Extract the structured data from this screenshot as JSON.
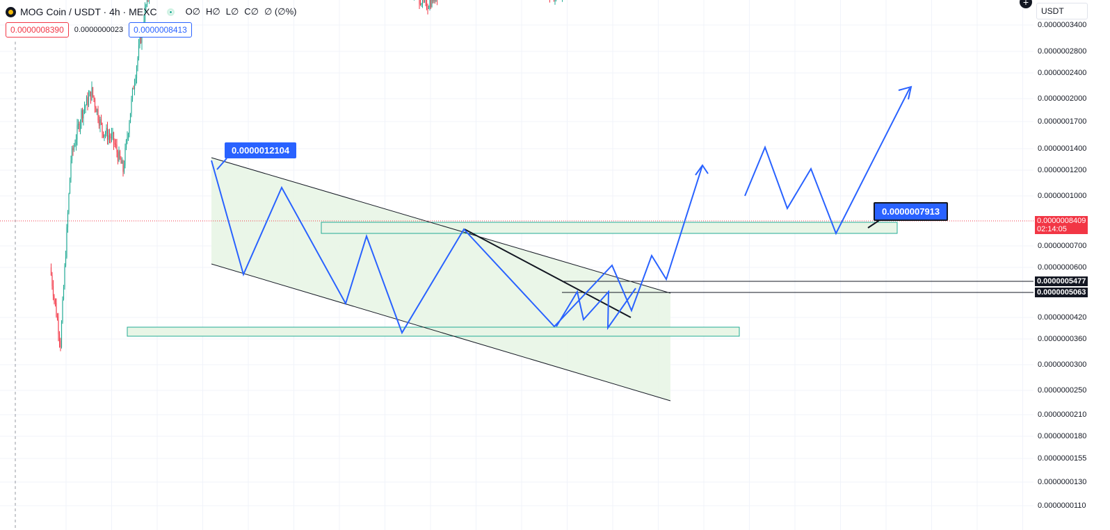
{
  "header": {
    "symbol": "MOG Coin / USDT · 4h · MEXC",
    "ohlc": [
      "O∅",
      "H∅",
      "L∅",
      "C∅",
      "∅ (∅%)"
    ],
    "sell_price": "0.0000008390",
    "spread": "0.0000000023",
    "buy_price": "0.0000008413",
    "currency": "USDT",
    "plus_icon": "+"
  },
  "colors": {
    "accent": "#2962ff",
    "up": "#22ab94",
    "down": "#f23645",
    "zone_fill": "#e8f5e6",
    "zone_border": "#22ab94",
    "black": "#131722"
  },
  "chart_data": {
    "type": "candlestick",
    "title": "MOG Coin / USDT · 4h · MEXC",
    "yscale": "log",
    "ylabel": "USDT",
    "y_ticks": [
      "0.0000003400",
      "0.0000002800",
      "0.0000002400",
      "0.0000002000",
      "0.0000001700",
      "0.0000001400",
      "0.0000001200",
      "0.0000001000",
      "0.0000000700",
      "0.0000000600",
      "0.0000000420",
      "0.0000000360",
      "0.0000000300",
      "0.0000000250",
      "0.0000000210",
      "0.0000000180",
      "0.0000000155",
      "0.0000000130",
      "0.0000000110"
    ],
    "current_price": "0.0000008409",
    "countdown": "02:14:05",
    "level_labels": [
      "0.0000005477",
      "0.0000005063"
    ],
    "annotations": [
      "0.0000012104",
      "0.0000007913"
    ],
    "price_path": [
      [
        0,
        0.6
      ],
      [
        10,
        0.35
      ],
      [
        20,
        1.3
      ],
      [
        30,
        1.8
      ],
      [
        40,
        2.1
      ],
      [
        50,
        1.6
      ],
      [
        60,
        1.5
      ],
      [
        70,
        1.2
      ],
      [
        80,
        2.2
      ],
      [
        90,
        3.6
      ],
      [
        100,
        5.2
      ],
      [
        110,
        8.6
      ],
      [
        120,
        11.6
      ],
      [
        130,
        11.0
      ],
      [
        140,
        10.0
      ],
      [
        150,
        9.8
      ],
      [
        160,
        9.4
      ],
      [
        170,
        9.0
      ],
      [
        180,
        10.4
      ],
      [
        190,
        12.1
      ],
      [
        200,
        9.2
      ],
      [
        210,
        6.4
      ],
      [
        220,
        8.5
      ],
      [
        230,
        7.3
      ],
      [
        240,
        8.7
      ],
      [
        250,
        10.3
      ],
      [
        260,
        9.1
      ],
      [
        270,
        7.8
      ],
      [
        280,
        7.0
      ],
      [
        290,
        6.2
      ],
      [
        300,
        5.4
      ],
      [
        310,
        4.8
      ],
      [
        320,
        6.4
      ],
      [
        330,
        5.9
      ],
      [
        340,
        5.0
      ],
      [
        350,
        4.3
      ],
      [
        360,
        3.9
      ],
      [
        370,
        4.2
      ],
      [
        380,
        5.3
      ],
      [
        390,
        6.6
      ],
      [
        400,
        7.8
      ],
      [
        410,
        7.2
      ],
      [
        420,
        6.3
      ],
      [
        430,
        5.6
      ],
      [
        440,
        5.2
      ],
      [
        450,
        5.8
      ],
      [
        460,
        5.4
      ],
      [
        470,
        4.7
      ],
      [
        480,
        4.3
      ],
      [
        490,
        4.2
      ],
      [
        500,
        5.8
      ],
      [
        510,
        7.5
      ],
      [
        520,
        6.2
      ],
      [
        530,
        5.7
      ],
      [
        540,
        8.4
      ],
      [
        550,
        9.5
      ],
      [
        560,
        11.2
      ],
      [
        570,
        12.8
      ],
      [
        580,
        16.0
      ],
      [
        590,
        14.5
      ],
      [
        600,
        15.2
      ],
      [
        610,
        13.8
      ],
      [
        620,
        15.6
      ],
      [
        630,
        14.2
      ],
      [
        640,
        15.0
      ],
      [
        650,
        13.1
      ],
      [
        660,
        11.4
      ],
      [
        670,
        10.2
      ],
      [
        680,
        11.6
      ],
      [
        690,
        9.4
      ],
      [
        700,
        8.8
      ],
      [
        705,
        8.4
      ]
    ]
  }
}
